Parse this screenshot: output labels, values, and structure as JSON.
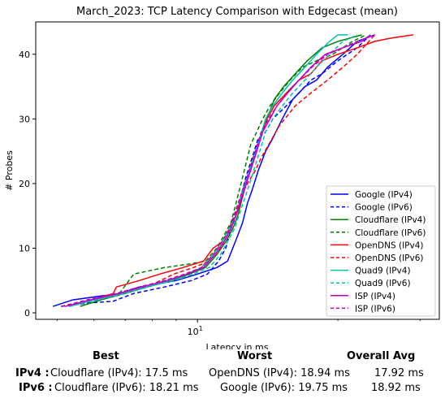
{
  "chart_data": {
    "type": "line",
    "title": "March_2023: TCP Latency Comparison with Edgecast (mean)",
    "xlabel": "Latency in ms",
    "ylabel": "# Probes",
    "xscale": "log",
    "xlim": [
      4.5,
      33
    ],
    "ylim": [
      -1,
      45
    ],
    "yticks": [
      0,
      10,
      20,
      30,
      40
    ],
    "xticks": [
      {
        "value": 10,
        "label": "10^1"
      }
    ],
    "legend_position": "lower-right",
    "grid": false,
    "series": [
      {
        "name": "Google (IPv4)",
        "color": "#0000ff",
        "dash": false,
        "x": [
          4.9,
          5.4,
          6.8,
          7.5,
          9.0,
          10.0,
          11.0,
          11.6,
          11.9,
          12.2,
          12.5,
          12.8,
          13.1,
          13.5,
          14.0,
          14.5,
          15.2,
          16.0,
          17.0,
          18.0,
          19.0,
          20.5,
          22.0,
          24.0
        ],
        "y": [
          1,
          2,
          3,
          4,
          5,
          6,
          7,
          8,
          10,
          12,
          14,
          17,
          19,
          22,
          25,
          27,
          30,
          33,
          35,
          36,
          38,
          40,
          42,
          43
        ]
      },
      {
        "name": "Google (IPv6)",
        "color": "#0000ff",
        "dash": true,
        "x": [
          5.1,
          5.8,
          6.6,
          7.3,
          8.5,
          9.7,
          10.5,
          11.1,
          11.5,
          11.8,
          12.1,
          12.4,
          12.7,
          13.1,
          13.5,
          14.0,
          14.5,
          15.5,
          16.5,
          17.5,
          18.5,
          20.0,
          22.0,
          23.5
        ],
        "y": [
          1,
          1.5,
          1.8,
          3,
          4,
          5,
          6,
          8,
          10,
          13,
          15,
          18,
          21,
          24,
          27,
          28,
          30,
          32,
          34,
          36,
          37,
          39,
          41,
          43
        ]
      },
      {
        "name": "Cloudflare (IPv4)",
        "color": "#008000",
        "dash": false,
        "x": [
          5.6,
          6.2,
          7.0,
          7.8,
          8.8,
          9.6,
          10.4,
          11.0,
          11.5,
          11.9,
          12.2,
          12.5,
          12.8,
          13.2,
          13.6,
          14.1,
          14.6,
          15.3,
          16.2,
          17.2,
          18.5,
          20.0,
          22.5
        ],
        "y": [
          1,
          2,
          3,
          4,
          5,
          6,
          7,
          9,
          11,
          13,
          15,
          18,
          21,
          24,
          27,
          30,
          33,
          35,
          37,
          39,
          41,
          42,
          43
        ]
      },
      {
        "name": "Cloudflare (IPv6)",
        "color": "#008000",
        "dash": true,
        "x": [
          5.3,
          6.0,
          6.8,
          7.3,
          8.5,
          9.5,
          10.4,
          11.0,
          11.4,
          11.8,
          12.1,
          12.4,
          12.7,
          13.0,
          13.4,
          13.8,
          14.3,
          15.0,
          15.8,
          16.8,
          18.0,
          19.5,
          21.5,
          23.0
        ],
        "y": [
          1,
          2,
          3,
          6,
          7,
          7.5,
          8,
          10,
          12,
          14,
          17,
          20,
          23,
          26,
          28,
          30,
          32,
          34,
          36,
          38,
          39,
          40,
          42,
          43
        ]
      },
      {
        "name": "OpenDNS (IPv4)",
        "color": "#ff0000",
        "dash": false,
        "x": [
          5.3,
          6.6,
          6.7,
          7.5,
          8.3,
          9.3,
          10.3,
          10.8,
          11.3,
          11.7,
          12.1,
          12.5,
          12.8,
          13.2,
          13.6,
          14.1,
          14.6,
          15.5,
          16.5,
          17.5,
          18.5,
          20.0,
          22.0,
          24.0,
          26.0,
          29.0
        ],
        "y": [
          1,
          3,
          4,
          5,
          6,
          7,
          8,
          10,
          11,
          13,
          15,
          18,
          21,
          24,
          27,
          30,
          32,
          34,
          36,
          37,
          39,
          40,
          41,
          42,
          42.5,
          43
        ]
      },
      {
        "name": "OpenDNS (IPv6)",
        "color": "#ff0000",
        "dash": true,
        "x": [
          5.3,
          6.1,
          7.0,
          7.8,
          8.9,
          9.8,
          10.6,
          11.2,
          11.6,
          12.0,
          12.4,
          12.8,
          13.3,
          13.7,
          14.2,
          15.0,
          16.2,
          17.5,
          19.0,
          20.5,
          22.0,
          24.0
        ],
        "y": [
          1,
          2,
          3,
          4,
          6,
          7,
          8,
          10,
          12,
          15,
          18,
          20,
          22,
          24,
          26,
          29,
          32,
          34,
          36,
          38,
          40,
          43
        ]
      },
      {
        "name": "Quad9 (IPv4)",
        "color": "#00bfbf",
        "dash": false,
        "x": [
          5.3,
          6.0,
          6.9,
          7.7,
          8.7,
          9.5,
          10.2,
          10.8,
          11.3,
          11.7,
          12.1,
          12.4,
          12.8,
          13.2,
          13.6,
          14.0,
          14.5,
          15.2,
          16.0,
          17.0,
          18.0,
          19.2,
          20.0,
          21.0
        ],
        "y": [
          1,
          2,
          3,
          4,
          5,
          6,
          7,
          9,
          11,
          13,
          15,
          18,
          21,
          24,
          27,
          30,
          32,
          34,
          36,
          38,
          40,
          42,
          43,
          43
        ]
      },
      {
        "name": "Quad9 (IPv6)",
        "color": "#00bfbf",
        "dash": true,
        "x": [
          5.3,
          6.1,
          7.0,
          7.8,
          8.9,
          9.8,
          10.6,
          11.2,
          11.6,
          12.0,
          12.4,
          12.8,
          13.2,
          13.6,
          14.0,
          14.5,
          15.2,
          16.0,
          17.0,
          18.0,
          19.2,
          20.5,
          22.0
        ],
        "y": [
          1,
          2,
          3,
          4,
          5,
          6,
          7,
          9,
          11,
          13,
          16,
          19,
          22,
          25,
          28,
          30,
          32,
          34,
          36,
          38,
          40,
          42,
          43
        ]
      },
      {
        "name": "ISP (IPv4)",
        "color": "#bf00bf",
        "dash": false,
        "x": [
          5.2,
          5.9,
          6.8,
          7.6,
          8.6,
          9.5,
          10.3,
          10.9,
          11.4,
          11.8,
          12.2,
          12.6,
          13.0,
          13.4,
          13.8,
          14.3,
          14.8,
          15.6,
          16.5,
          17.5,
          18.8,
          20.5,
          22.5,
          23.5
        ],
        "y": [
          1,
          2,
          3,
          4,
          5,
          6,
          7,
          9,
          11,
          13,
          16,
          19,
          22,
          25,
          28,
          30,
          32,
          34,
          36,
          38,
          40,
          41,
          42,
          43
        ]
      },
      {
        "name": "ISP (IPv6)",
        "color": "#bf00bf",
        "dash": true,
        "x": [
          5.1,
          5.8,
          6.7,
          7.5,
          8.5,
          9.4,
          10.2,
          10.8,
          11.3,
          11.7,
          12.1,
          12.5,
          12.9,
          13.3,
          13.7,
          14.2,
          14.8,
          15.6,
          16.5,
          17.6,
          19.0,
          20.5,
          22.0,
          24.0
        ],
        "y": [
          1,
          2,
          3,
          4,
          5,
          6,
          7,
          9,
          11,
          13,
          16,
          19,
          22,
          25,
          28,
          30,
          32,
          34,
          36,
          38,
          40,
          41,
          42,
          43
        ]
      }
    ]
  },
  "table": {
    "headers": [
      "Best",
      "Worst",
      "Overall Avg"
    ],
    "rows": [
      {
        "label": "IPv4 :",
        "best": "Cloudflare (IPv4): 17.5 ms",
        "worst": "OpenDNS (IPv4): 18.94 ms",
        "avg": "17.92 ms"
      },
      {
        "label": "IPv6 :",
        "best": "Cloudflare (IPv6): 18.21 ms",
        "worst": "Google (IPv6): 19.75 ms",
        "avg": "18.92 ms"
      }
    ]
  }
}
